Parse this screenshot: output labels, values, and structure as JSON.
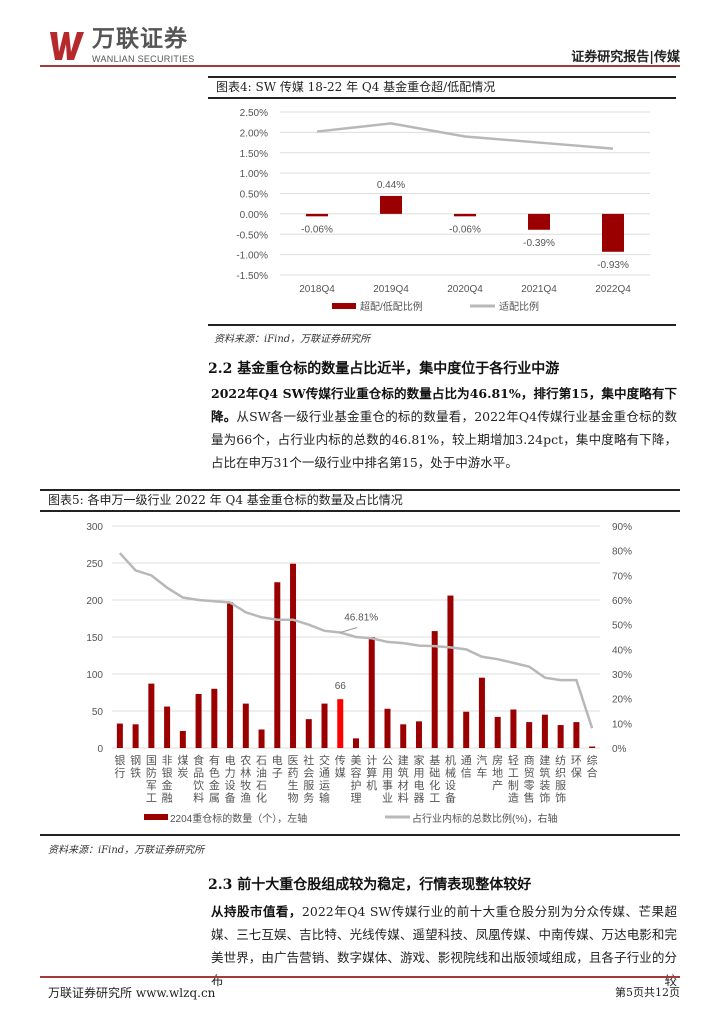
{
  "header": {
    "logo_cn": "万联证券",
    "logo_en": "WANLIAN SECURITIES",
    "report_type": "证券研究报告|传媒"
  },
  "figure4": {
    "title": "图表4:   SW 传媒 18-22 年 Q4 基金重仓超/低配情况",
    "source": "资料来源：iFind，万联证券研究所"
  },
  "section22": {
    "heading": "2.2  基金重仓标的数量占比近半，集中度位于各行业中游",
    "bold": "2022年Q4 SW传媒行业重仓标的数量占比为46.81%，排行第15，集中度略有下降。",
    "text": "从SW各一级行业基金重仓的标的数量看，2022年Q4传媒行业基金重仓标的数量为66个，占行业内标的总数的46.81%，较上期增加3.24pct，集中度略有下降，占比在申万31个一级行业中排名第15，处于中游水平。"
  },
  "figure5": {
    "title": "图表5:   各申万一级行业 2022 年 Q4 基金重仓标的数量及占比情况",
    "source": "资料来源：iFind，万联证券研究所"
  },
  "section23": {
    "heading": "2.3  前十大重仓股组成较为稳定，行情表现整体较好",
    "bold": "从持股市值看，",
    "text": "2022年Q4  SW传媒行业的前十大重仓股分别为分众传媒、芒果超媒、三七互娱、吉比特、光线传媒、遥望科技、凤凰传媒、中南传媒、万达电影和完美世界，由广告营销、数字媒体、游戏、影视院线和出版领域组成，且各子行业的分布较"
  },
  "footer": {
    "left": "万联证券研究所 www.wlzq.cn",
    "right": "第5页共12页"
  },
  "colors": {
    "bar": "#9b0000",
    "highlight": "#ff0000",
    "line": "#b8b8b8",
    "accent": "#a33a3a"
  },
  "chart_data": [
    {
      "type": "bar+line",
      "categories": [
        "2018Q4",
        "2019Q4",
        "2020Q4",
        "2021Q4",
        "2022Q4"
      ],
      "series": [
        {
          "name": "超配/低配比例",
          "type": "bar",
          "values": [
            -0.06,
            0.44,
            -0.06,
            -0.39,
            -0.93
          ],
          "labels": [
            "-0.06%",
            "0.44%",
            "-0.06%",
            "-0.39%",
            "-0.93%"
          ]
        },
        {
          "name": "适配比例",
          "type": "line",
          "values": [
            2.02,
            2.22,
            1.9,
            1.75,
            1.6
          ]
        }
      ],
      "yticks": [
        "2.50%",
        "2.00%",
        "1.50%",
        "1.00%",
        "0.50%",
        "0.00%",
        "-0.50%",
        "-1.00%",
        "-1.50%"
      ],
      "ylim": [
        -1.5,
        2.5
      ],
      "grid": true,
      "legend": "bottom"
    },
    {
      "type": "bar+line",
      "categories": [
        "银行",
        "钢铁",
        "国防军工",
        "非银金融",
        "煤炭",
        "食品饮料",
        "有色金属",
        "电力设备",
        "农林牧渔",
        "石油石化",
        "电子",
        "医药生物",
        "社会服务",
        "交通运输",
        "传媒",
        "美容护理",
        "计算机",
        "公用事业",
        "建筑材料",
        "家用电器",
        "基础化工",
        "机械设备",
        "通信",
        "汽车",
        "房地产",
        "轻工制造",
        "商贸零售",
        "建筑装饰",
        "纺织服饰",
        "环保",
        "综合"
      ],
      "series": [
        {
          "name": "22Q4重仓标的数量（个），左轴",
          "type": "bar",
          "values": [
            33,
            32,
            87,
            56,
            23,
            73,
            80,
            197,
            60,
            25,
            224,
            249,
            39,
            60,
            66,
            13,
            150,
            53,
            32,
            36,
            158,
            206,
            49,
            95,
            42,
            52,
            35,
            45,
            31,
            35,
            2
          ]
        },
        {
          "name": "占行业内标的总数比例(%)，右轴",
          "type": "line",
          "values": [
            79,
            72,
            70,
            65,
            61,
            60,
            59.5,
            59,
            55,
            53,
            52,
            52,
            50,
            47.5,
            46.81,
            45,
            44.5,
            43,
            42.5,
            41.5,
            41.3,
            40.8,
            40,
            37,
            36,
            34.5,
            33,
            28.5,
            27.5,
            27.5,
            8
          ]
        }
      ],
      "highlight": "传媒",
      "annotations": [
        "66",
        "46.81%"
      ],
      "yticks_left": [
        "300",
        "250",
        "200",
        "150",
        "100",
        "50",
        "0"
      ],
      "ylim_left": [
        0,
        300
      ],
      "yticks_right": [
        "90%",
        "80%",
        "70%",
        "60%",
        "50%",
        "40%",
        "30%",
        "20%",
        "10%",
        "0%"
      ],
      "ylim_right": [
        0,
        90
      ],
      "legend_labels": [
        "2204重仓标的数量（个），左轴",
        "占行业内标的总数比例(%)，右轴"
      ],
      "grid": true,
      "legend": "bottom"
    }
  ]
}
